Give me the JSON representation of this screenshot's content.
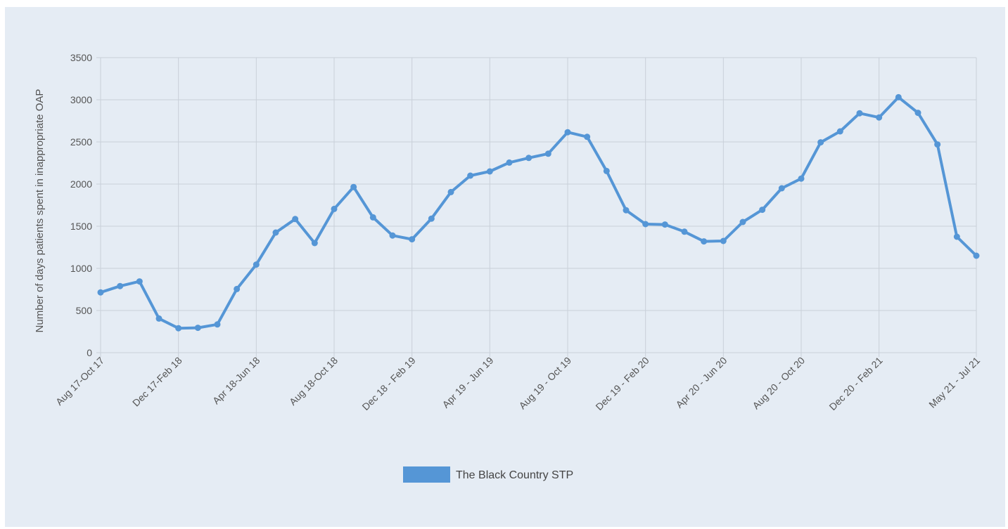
{
  "chart_data": {
    "type": "line",
    "title": "",
    "xlabel": "",
    "ylabel": "Number of days patients spent in inappropriate OAP",
    "ylim": [
      0,
      3500
    ],
    "yticks": [
      0,
      500,
      1000,
      1500,
      2000,
      2500,
      3000,
      3500
    ],
    "grid": true,
    "legend_position": "bottom",
    "colors": {
      "line": "#5596d6",
      "background": "#e5ecf4",
      "grid": "#c9d0d9"
    },
    "x_tick_labels": [
      {
        "index": 0,
        "label": "Aug 17-Oct 17"
      },
      {
        "index": 4,
        "label": "Dec 17-Feb 18"
      },
      {
        "index": 8,
        "label": "Apr 18-Jun 18"
      },
      {
        "index": 12,
        "label": "Aug 18-Oct 18"
      },
      {
        "index": 16,
        "label": "Dec 18 - Feb 19"
      },
      {
        "index": 20,
        "label": "Apr 19 - Jun 19"
      },
      {
        "index": 24,
        "label": "Aug 19 - Oct 19"
      },
      {
        "index": 28,
        "label": "Dec 19 - Feb 20"
      },
      {
        "index": 32,
        "label": "Apr 20 - Jun 20"
      },
      {
        "index": 36,
        "label": "Aug 20 - Oct 20"
      },
      {
        "index": 40,
        "label": "Dec 20 - Feb 21"
      },
      {
        "index": 45,
        "label": "May 21 - Jul 21"
      }
    ],
    "series": [
      {
        "name": "The Black Country STP",
        "values": [
          715,
          790,
          845,
          405,
          290,
          295,
          335,
          755,
          1045,
          1425,
          1585,
          1300,
          1705,
          1965,
          1605,
          1390,
          1345,
          1590,
          1905,
          2100,
          2150,
          2255,
          2310,
          2360,
          2615,
          2560,
          2155,
          1690,
          1525,
          1520,
          1435,
          1320,
          1325,
          1550,
          1695,
          1950,
          2065,
          2495,
          2625,
          2840,
          2790,
          3030,
          2845,
          2470,
          1375,
          1150
        ]
      }
    ]
  }
}
